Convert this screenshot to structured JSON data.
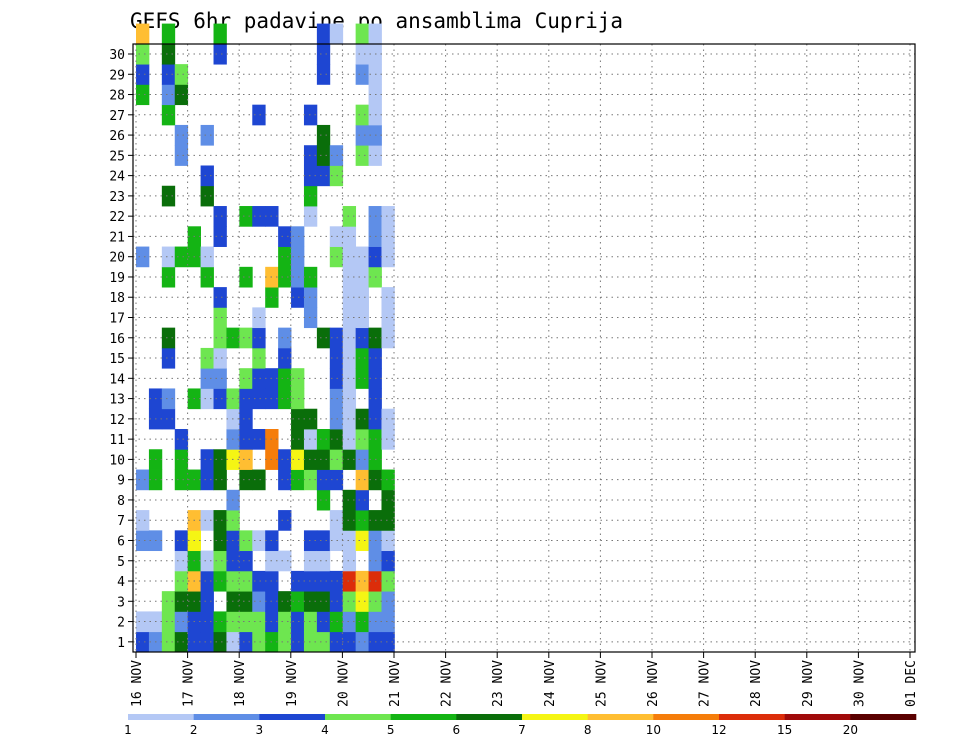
{
  "chart_data": {
    "type": "heatmap",
    "title": "GEFS 6hr padavine po ansamblima Cuprija",
    "x_labels": [
      "16 NOV",
      "17 NOV",
      "18 NOV",
      "19 NOV",
      "20 NOV",
      "21 NOV",
      "22 NOV",
      "23 NOV",
      "24 NOV",
      "25 NOV",
      "26 NOV",
      "27 NOV",
      "28 NOV",
      "29 NOV",
      "30 NOV",
      "01 DEC"
    ],
    "y_labels": [
      "1",
      "2",
      "3",
      "4",
      "5",
      "6",
      "7",
      "8",
      "9",
      "10",
      "11",
      "12",
      "13",
      "14",
      "15",
      "16",
      "17",
      "18",
      "19",
      "20",
      "21",
      "22",
      "23",
      "24",
      "25",
      "26",
      "27",
      "28",
      "29",
      "30"
    ],
    "grid": "dotted",
    "legend": "bottom",
    "colorbar": {
      "levels": [
        "1",
        "2",
        "3",
        "4",
        "5",
        "6",
        "7",
        "8",
        "10",
        "12",
        "15",
        "20"
      ],
      "colors": [
        "#b4c8f5",
        "#5f8ee6",
        "#1e46d2",
        "#6ee650",
        "#14b414",
        "#0a6e0a",
        "#f5f514",
        "#ffbe32",
        "#f57d0a",
        "#dc2d0a",
        "#a00a0a",
        "#5a0000"
      ]
    },
    "cells": [
      [
        0,
        1,
        3
      ],
      [
        0,
        2,
        1
      ],
      [
        0,
        6,
        2
      ],
      [
        0,
        7,
        1
      ],
      [
        0,
        9,
        2
      ],
      [
        0,
        20,
        2
      ],
      [
        0,
        28,
        5
      ],
      [
        0,
        29,
        3
      ],
      [
        0,
        30,
        4
      ],
      [
        0,
        31,
        8
      ],
      [
        1,
        1,
        2
      ],
      [
        1,
        2,
        1
      ],
      [
        1,
        6,
        2
      ],
      [
        1,
        9,
        5
      ],
      [
        1,
        10,
        5
      ],
      [
        1,
        12,
        3
      ],
      [
        1,
        13,
        3
      ],
      [
        2,
        1,
        4
      ],
      [
        2,
        2,
        4
      ],
      [
        2,
        3,
        4
      ],
      [
        2,
        12,
        3
      ],
      [
        2,
        13,
        2
      ],
      [
        2,
        15,
        3
      ],
      [
        2,
        16,
        6
      ],
      [
        2,
        19,
        5
      ],
      [
        2,
        20,
        1
      ],
      [
        2,
        23,
        6
      ],
      [
        2,
        27,
        5
      ],
      [
        2,
        28,
        2
      ],
      [
        2,
        29,
        3
      ],
      [
        2,
        30,
        6
      ],
      [
        2,
        31,
        5
      ],
      [
        3,
        1,
        6
      ],
      [
        3,
        2,
        2
      ],
      [
        3,
        3,
        6
      ],
      [
        3,
        4,
        4
      ],
      [
        3,
        5,
        1
      ],
      [
        3,
        6,
        3
      ],
      [
        3,
        9,
        5
      ],
      [
        3,
        10,
        5
      ],
      [
        3,
        11,
        3
      ],
      [
        3,
        20,
        5
      ],
      [
        3,
        25,
        2
      ],
      [
        3,
        26,
        2
      ],
      [
        3,
        28,
        6
      ],
      [
        3,
        29,
        4
      ],
      [
        4,
        1,
        3
      ],
      [
        4,
        2,
        3
      ],
      [
        4,
        3,
        6
      ],
      [
        4,
        4,
        8
      ],
      [
        4,
        5,
        5
      ],
      [
        4,
        6,
        7
      ],
      [
        4,
        7,
        8
      ],
      [
        4,
        9,
        5
      ],
      [
        4,
        13,
        5
      ],
      [
        4,
        20,
        5
      ],
      [
        4,
        21,
        5
      ],
      [
        5,
        1,
        3
      ],
      [
        5,
        2,
        3
      ],
      [
        5,
        3,
        3
      ],
      [
        5,
        4,
        3
      ],
      [
        5,
        5,
        1
      ],
      [
        5,
        7,
        1
      ],
      [
        5,
        9,
        3
      ],
      [
        5,
        10,
        3
      ],
      [
        5,
        13,
        1
      ],
      [
        5,
        14,
        2
      ],
      [
        5,
        15,
        4
      ],
      [
        5,
        19,
        5
      ],
      [
        5,
        20,
        1
      ],
      [
        5,
        23,
        6
      ],
      [
        5,
        24,
        3
      ],
      [
        5,
        26,
        2
      ],
      [
        6,
        1,
        6
      ],
      [
        6,
        2,
        5
      ],
      [
        6,
        4,
        5
      ],
      [
        6,
        5,
        4
      ],
      [
        6,
        6,
        6
      ],
      [
        6,
        7,
        6
      ],
      [
        6,
        9,
        6
      ],
      [
        6,
        10,
        6
      ],
      [
        6,
        13,
        3
      ],
      [
        6,
        14,
        2
      ],
      [
        6,
        15,
        1
      ],
      [
        6,
        16,
        4
      ],
      [
        6,
        17,
        4
      ],
      [
        6,
        18,
        3
      ],
      [
        6,
        21,
        3
      ],
      [
        6,
        22,
        3
      ],
      [
        6,
        30,
        3
      ],
      [
        6,
        31,
        5
      ],
      [
        7,
        1,
        1
      ],
      [
        7,
        2,
        4
      ],
      [
        7,
        3,
        6
      ],
      [
        7,
        4,
        4
      ],
      [
        7,
        5,
        3
      ],
      [
        7,
        6,
        3
      ],
      [
        7,
        7,
        4
      ],
      [
        7,
        8,
        2
      ],
      [
        7,
        10,
        7
      ],
      [
        7,
        11,
        2
      ],
      [
        7,
        12,
        1
      ],
      [
        7,
        13,
        4
      ],
      [
        7,
        16,
        5
      ],
      [
        8,
        1,
        3
      ],
      [
        8,
        2,
        4
      ],
      [
        8,
        3,
        6
      ],
      [
        8,
        4,
        4
      ],
      [
        8,
        5,
        3
      ],
      [
        8,
        6,
        4
      ],
      [
        8,
        9,
        6
      ],
      [
        8,
        10,
        8
      ],
      [
        8,
        11,
        3
      ],
      [
        8,
        12,
        3
      ],
      [
        8,
        13,
        3
      ],
      [
        8,
        14,
        4
      ],
      [
        8,
        16,
        4
      ],
      [
        8,
        19,
        5
      ],
      [
        8,
        22,
        5
      ],
      [
        9,
        1,
        4
      ],
      [
        9,
        2,
        4
      ],
      [
        9,
        3,
        2
      ],
      [
        9,
        4,
        3
      ],
      [
        9,
        6,
        1
      ],
      [
        9,
        9,
        6
      ],
      [
        9,
        11,
        3
      ],
      [
        9,
        13,
        3
      ],
      [
        9,
        14,
        3
      ],
      [
        9,
        15,
        4
      ],
      [
        9,
        16,
        3
      ],
      [
        9,
        17,
        1
      ],
      [
        9,
        22,
        3
      ],
      [
        9,
        27,
        3
      ],
      [
        10,
        1,
        5
      ],
      [
        10,
        2,
        3
      ],
      [
        10,
        3,
        3
      ],
      [
        10,
        4,
        3
      ],
      [
        10,
        5,
        1
      ],
      [
        10,
        6,
        3
      ],
      [
        10,
        10,
        9
      ],
      [
        10,
        11,
        9
      ],
      [
        10,
        13,
        3
      ],
      [
        10,
        14,
        3
      ],
      [
        10,
        18,
        5
      ],
      [
        10,
        19,
        8
      ],
      [
        10,
        22,
        3
      ],
      [
        11,
        1,
        4
      ],
      [
        11,
        2,
        4
      ],
      [
        11,
        3,
        6
      ],
      [
        11,
        5,
        1
      ],
      [
        11,
        7,
        3
      ],
      [
        11,
        9,
        3
      ],
      [
        11,
        10,
        3
      ],
      [
        11,
        13,
        5
      ],
      [
        11,
        14,
        5
      ],
      [
        11,
        15,
        3
      ],
      [
        11,
        16,
        2
      ],
      [
        11,
        19,
        5
      ],
      [
        11,
        20,
        5
      ],
      [
        11,
        21,
        3
      ],
      [
        12,
        1,
        3
      ],
      [
        12,
        2,
        3
      ],
      [
        12,
        3,
        5
      ],
      [
        12,
        4,
        3
      ],
      [
        12,
        9,
        5
      ],
      [
        12,
        10,
        7
      ],
      [
        12,
        11,
        6
      ],
      [
        12,
        12,
        6
      ],
      [
        12,
        13,
        4
      ],
      [
        12,
        14,
        4
      ],
      [
        12,
        18,
        3
      ],
      [
        12,
        19,
        2
      ],
      [
        12,
        20,
        2
      ],
      [
        12,
        21,
        2
      ],
      [
        13,
        1,
        4
      ],
      [
        13,
        2,
        4
      ],
      [
        13,
        3,
        6
      ],
      [
        13,
        4,
        3
      ],
      [
        13,
        5,
        1
      ],
      [
        13,
        6,
        3
      ],
      [
        13,
        9,
        4
      ],
      [
        13,
        10,
        6
      ],
      [
        13,
        11,
        1
      ],
      [
        13,
        12,
        6
      ],
      [
        13,
        17,
        2
      ],
      [
        13,
        18,
        2
      ],
      [
        13,
        19,
        5
      ],
      [
        13,
        22,
        1
      ],
      [
        13,
        23,
        5
      ],
      [
        13,
        24,
        3
      ],
      [
        13,
        25,
        3
      ],
      [
        13,
        27,
        3
      ],
      [
        14,
        1,
        4
      ],
      [
        14,
        2,
        3
      ],
      [
        14,
        3,
        6
      ],
      [
        14,
        4,
        3
      ],
      [
        14,
        5,
        1
      ],
      [
        14,
        6,
        3
      ],
      [
        14,
        8,
        5
      ],
      [
        14,
        9,
        3
      ],
      [
        14,
        10,
        6
      ],
      [
        14,
        11,
        5
      ],
      [
        14,
        16,
        6
      ],
      [
        14,
        24,
        3
      ],
      [
        14,
        25,
        6
      ],
      [
        14,
        26,
        6
      ],
      [
        14,
        29,
        3
      ],
      [
        14,
        30,
        3
      ],
      [
        14,
        31,
        3
      ],
      [
        15,
        1,
        3
      ],
      [
        15,
        2,
        5
      ],
      [
        15,
        3,
        3
      ],
      [
        15,
        4,
        3
      ],
      [
        15,
        6,
        1
      ],
      [
        15,
        7,
        1
      ],
      [
        15,
        9,
        3
      ],
      [
        15,
        10,
        4
      ],
      [
        15,
        11,
        6
      ],
      [
        15,
        12,
        2
      ],
      [
        15,
        13,
        2
      ],
      [
        15,
        14,
        3
      ],
      [
        15,
        15,
        3
      ],
      [
        15,
        16,
        3
      ],
      [
        15,
        20,
        4
      ],
      [
        15,
        21,
        1
      ],
      [
        15,
        24,
        4
      ],
      [
        15,
        25,
        2
      ],
      [
        15,
        31,
        1
      ],
      [
        16,
        1,
        3
      ],
      [
        16,
        2,
        2
      ],
      [
        16,
        3,
        4
      ],
      [
        16,
        4,
        10
      ],
      [
        16,
        5,
        1
      ],
      [
        16,
        6,
        1
      ],
      [
        16,
        7,
        6
      ],
      [
        16,
        8,
        6
      ],
      [
        16,
        10,
        6
      ],
      [
        16,
        11,
        1
      ],
      [
        16,
        12,
        1
      ],
      [
        16,
        13,
        1
      ],
      [
        16,
        14,
        1
      ],
      [
        16,
        15,
        1
      ],
      [
        16,
        16,
        1
      ],
      [
        16,
        17,
        1
      ],
      [
        16,
        18,
        1
      ],
      [
        16,
        19,
        1
      ],
      [
        16,
        20,
        1
      ],
      [
        16,
        21,
        1
      ],
      [
        16,
        22,
        4
      ],
      [
        17,
        1,
        2
      ],
      [
        17,
        2,
        5
      ],
      [
        17,
        3,
        7
      ],
      [
        17,
        4,
        8
      ],
      [
        17,
        6,
        7
      ],
      [
        17,
        7,
        5
      ],
      [
        17,
        8,
        3
      ],
      [
        17,
        9,
        8
      ],
      [
        17,
        10,
        2
      ],
      [
        17,
        11,
        4
      ],
      [
        17,
        12,
        6
      ],
      [
        17,
        14,
        5
      ],
      [
        17,
        15,
        5
      ],
      [
        17,
        16,
        3
      ],
      [
        17,
        17,
        1
      ],
      [
        17,
        18,
        1
      ],
      [
        17,
        19,
        1
      ],
      [
        17,
        20,
        1
      ],
      [
        17,
        25,
        4
      ],
      [
        17,
        26,
        2
      ],
      [
        17,
        27,
        4
      ],
      [
        17,
        29,
        2
      ],
      [
        17,
        30,
        1
      ],
      [
        17,
        31,
        4
      ],
      [
        18,
        1,
        3
      ],
      [
        18,
        2,
        2
      ],
      [
        18,
        3,
        4
      ],
      [
        18,
        4,
        10
      ],
      [
        18,
        5,
        2
      ],
      [
        18,
        6,
        2
      ],
      [
        18,
        7,
        6
      ],
      [
        18,
        9,
        6
      ],
      [
        18,
        10,
        5
      ],
      [
        18,
        11,
        5
      ],
      [
        18,
        12,
        3
      ],
      [
        18,
        13,
        3
      ],
      [
        18,
        14,
        3
      ],
      [
        18,
        15,
        3
      ],
      [
        18,
        16,
        6
      ],
      [
        18,
        19,
        4
      ],
      [
        18,
        20,
        3
      ],
      [
        18,
        21,
        2
      ],
      [
        18,
        22,
        2
      ],
      [
        18,
        25,
        1
      ],
      [
        18,
        26,
        2
      ],
      [
        18,
        27,
        1
      ],
      [
        18,
        28,
        1
      ],
      [
        18,
        29,
        1
      ],
      [
        18,
        30,
        1
      ],
      [
        18,
        31,
        1
      ],
      [
        19,
        1,
        3
      ],
      [
        19,
        2,
        2
      ],
      [
        19,
        3,
        2
      ],
      [
        19,
        4,
        4
      ],
      [
        19,
        5,
        3
      ],
      [
        19,
        6,
        1
      ],
      [
        19,
        7,
        6
      ],
      [
        19,
        8,
        6
      ],
      [
        19,
        9,
        5
      ],
      [
        19,
        11,
        1
      ],
      [
        19,
        12,
        1
      ],
      [
        19,
        16,
        1
      ],
      [
        19,
        17,
        1
      ],
      [
        19,
        18,
        1
      ],
      [
        19,
        20,
        1
      ],
      [
        19,
        21,
        1
      ],
      [
        19,
        22,
        1
      ]
    ]
  }
}
